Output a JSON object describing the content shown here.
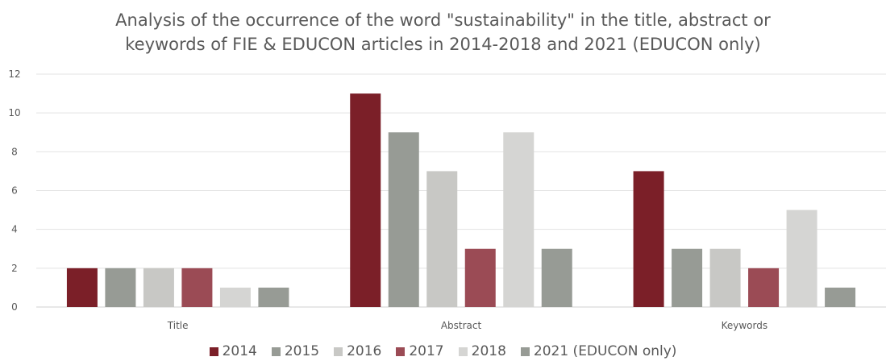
{
  "chart_data": {
    "type": "bar",
    "title_line1": "Analysis of the occurrence of the word \"sustainability\" in the title, abstract or",
    "title_line2": "keywords of FIE & EDUCON articles in 2014-2018 and 2021 (EDUCON only)",
    "categories": [
      "Title",
      "Abstract",
      "Keywords"
    ],
    "ylim": [
      0,
      12
    ],
    "yticks": [
      0,
      2,
      4,
      6,
      8,
      10,
      12
    ],
    "grid": true,
    "legend_position": "bottom",
    "series": [
      {
        "name": "2014",
        "color": "#7B1F28",
        "values": [
          2,
          11,
          7
        ]
      },
      {
        "name": "2015",
        "color": "#979B95",
        "values": [
          2,
          9,
          3
        ]
      },
      {
        "name": "2016",
        "color": "#C8C8C5",
        "values": [
          2,
          7,
          3
        ]
      },
      {
        "name": "2017",
        "color": "#9B4B55",
        "values": [
          2,
          3,
          2
        ]
      },
      {
        "name": "2018",
        "color": "#D5D5D3",
        "values": [
          1,
          9,
          5
        ]
      },
      {
        "name": "2021 (EDUCON only)",
        "color": "#979B95",
        "values": [
          1,
          3,
          1
        ]
      }
    ]
  }
}
